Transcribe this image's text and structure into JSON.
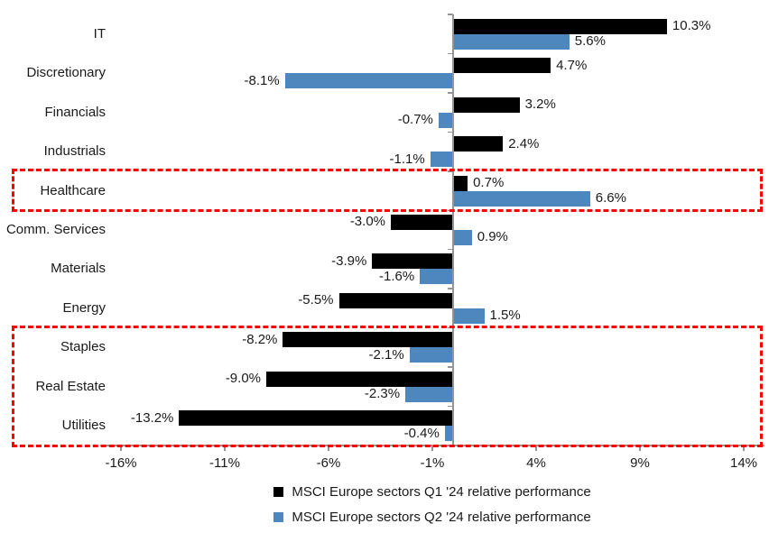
{
  "chart_data": {
    "type": "bar",
    "orientation": "horizontal-grouped",
    "categories": [
      "IT",
      "Discretionary",
      "Financials",
      "Industrials",
      "Healthcare",
      "Comm. Services",
      "Materials",
      "Energy",
      "Staples",
      "Real Estate",
      "Utilities"
    ],
    "series": [
      {
        "name": "MSCI Europe sectors Q1 '24 relative performance",
        "color": "#000000",
        "values": [
          10.3,
          4.7,
          3.2,
          2.4,
          0.7,
          -3.0,
          -3.9,
          -5.5,
          -8.2,
          -9.0,
          -13.2
        ],
        "labels": [
          "10.3%",
          "4.7%",
          "3.2%",
          "2.4%",
          "0.7%",
          "-3.0%",
          "-3.9%",
          "-5.5%",
          "-8.2%",
          "-9.0%",
          "-13.2%"
        ]
      },
      {
        "name": "MSCI Europe sectors Q2 '24 relative performance",
        "color": "#4E86BE",
        "values": [
          5.6,
          -8.1,
          -0.7,
          -1.1,
          6.6,
          0.9,
          -1.6,
          1.5,
          -2.1,
          -2.3,
          -0.4
        ],
        "labels": [
          "5.6%",
          "-8.1%",
          "-0.7%",
          "-1.1%",
          "6.6%",
          "0.9%",
          "-1.6%",
          "1.5%",
          "-2.1%",
          "-2.3%",
          "-0.4%"
        ]
      }
    ],
    "x_axis": {
      "tick_labels": [
        "-16%",
        "-11%",
        "-6%",
        "-1%",
        "4%",
        "9%",
        "14%"
      ],
      "tick_values": [
        -16,
        -11,
        -6,
        -1,
        4,
        9,
        14
      ],
      "range": [
        -17,
        15
      ],
      "unit": "%"
    },
    "y_axis": {
      "label": ""
    },
    "grid": false,
    "legend_position": "bottom-center",
    "annotations": [
      {
        "type": "dashed-box",
        "color": "#FF0000",
        "start_category": "Healthcare",
        "end_category": "Healthcare"
      },
      {
        "type": "dashed-box",
        "color": "#FF0000",
        "start_category": "Staples",
        "end_category": "Utilities"
      }
    ],
    "axis_color": "#959595",
    "value_label_color": "#1a1a1a"
  }
}
